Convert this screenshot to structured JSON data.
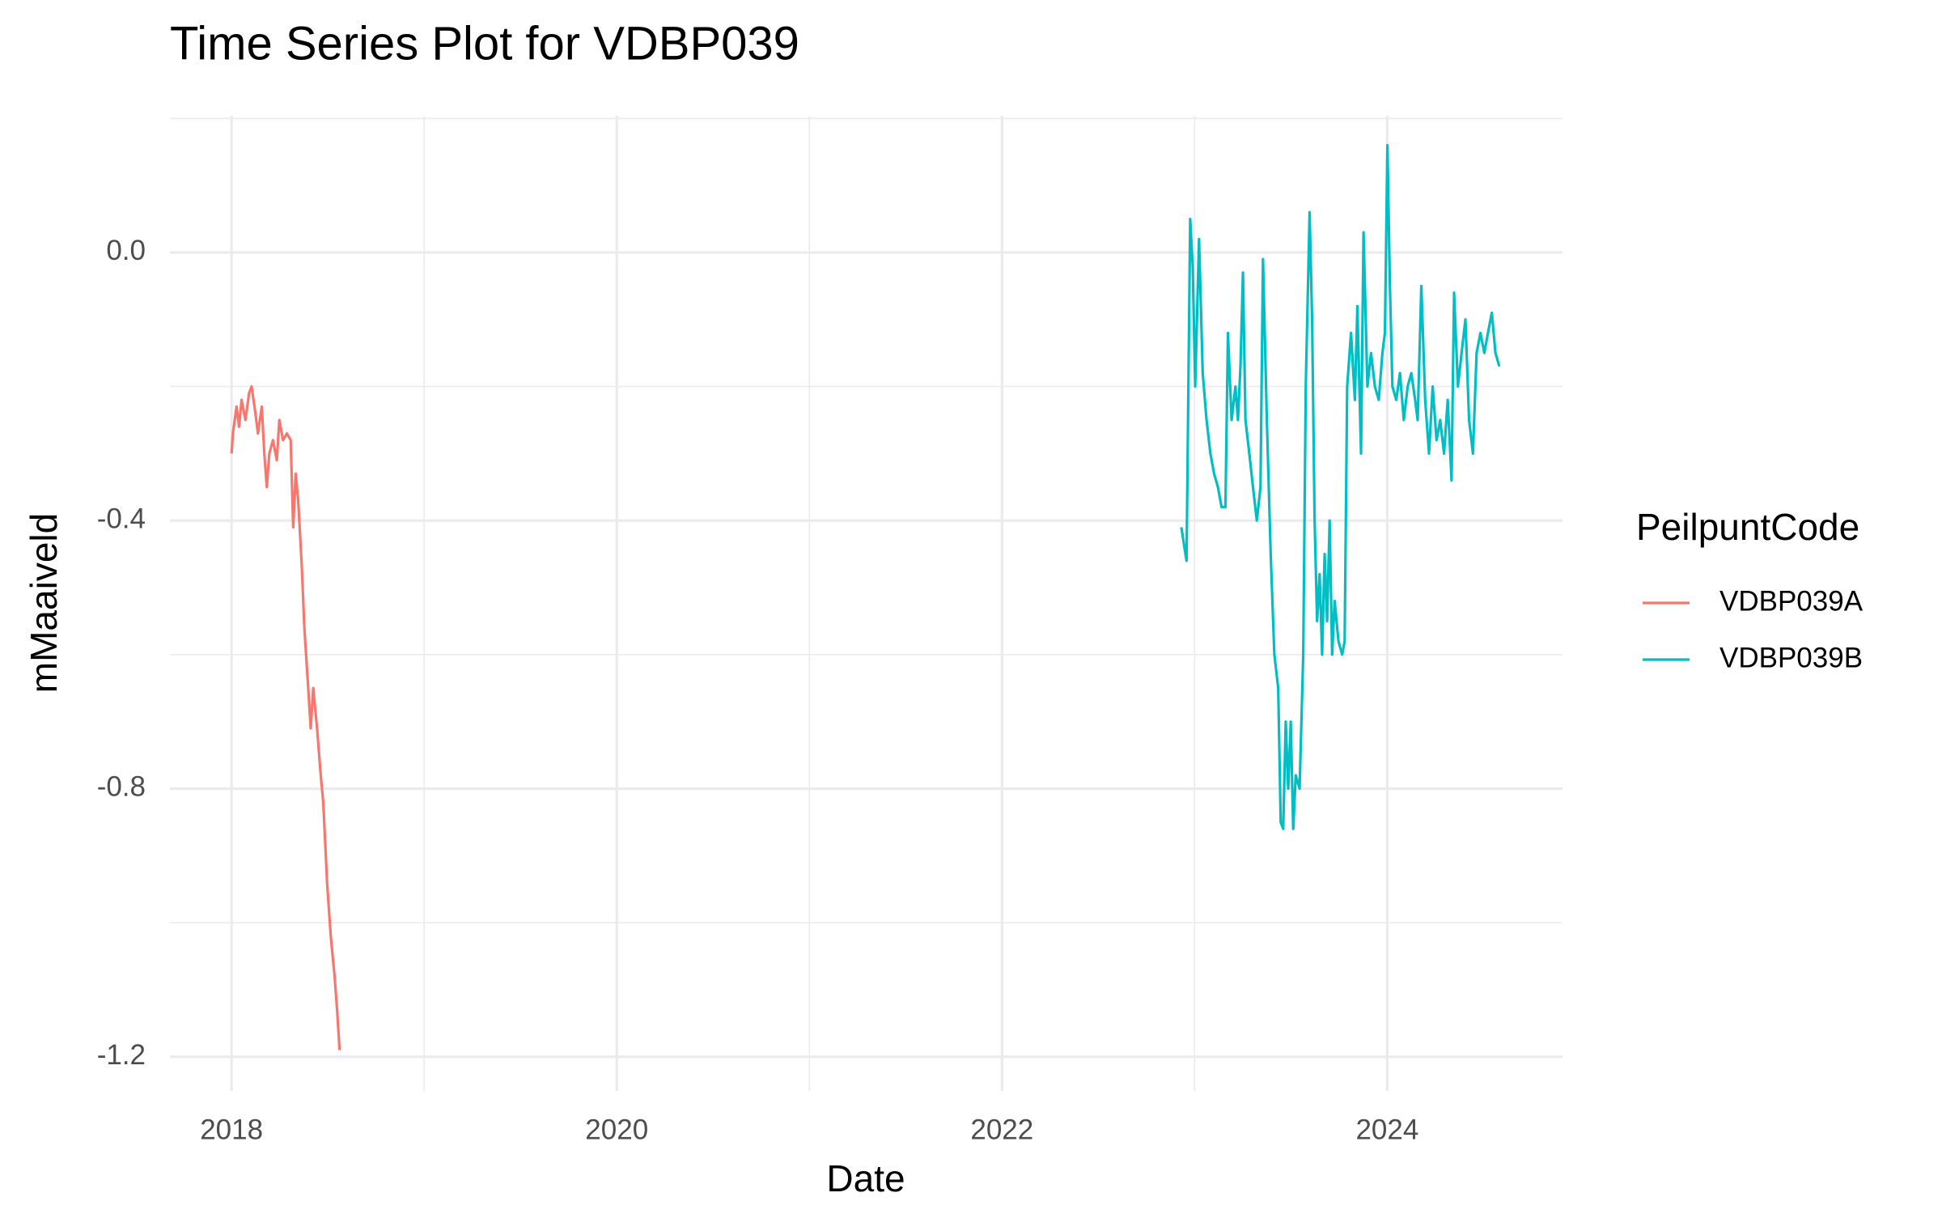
{
  "chart_data": {
    "type": "line",
    "title": "Time Series Plot for VDBP039",
    "x_label": "Date",
    "y_label": "mMaaiveld",
    "legend_title": "PeilpuntCode",
    "xlim": [
      2017.68,
      2024.91
    ],
    "ylim": [
      -1.251,
      0.204
    ],
    "xticks": [
      2018,
      2020,
      2022,
      2024
    ],
    "x_minor_ticks": [
      2019,
      2021,
      2023
    ],
    "yticks": [
      -1.2,
      -0.8,
      -0.4,
      {
        "value": 0,
        "label": "0.0"
      }
    ],
    "y_minor_ticks": [
      -1.0,
      -0.6,
      -0.2,
      0.2
    ],
    "grid": true,
    "legend": "right",
    "series": [
      {
        "name": "VDBP039A",
        "color": "#f8766d",
        "x": [
          2018.0,
          2018.007,
          2018.026,
          2018.039,
          2018.052,
          2018.072,
          2018.091,
          2018.104,
          2018.124,
          2018.137,
          2018.157,
          2018.17,
          2018.183,
          2018.196,
          2018.215,
          2018.235,
          2018.248,
          2018.267,
          2018.287,
          2018.307,
          2018.32,
          2018.333,
          2018.346,
          2018.365,
          2018.378,
          2018.398,
          2018.411,
          2018.424,
          2018.444,
          2018.463,
          2018.476,
          2018.496,
          2018.515,
          2018.535,
          2018.548,
          2018.561
        ],
        "values": [
          -0.3,
          -0.27,
          -0.23,
          -0.26,
          -0.22,
          -0.25,
          -0.21,
          -0.2,
          -0.24,
          -0.27,
          -0.23,
          -0.3,
          -0.35,
          -0.3,
          -0.28,
          -0.31,
          -0.25,
          -0.28,
          -0.27,
          -0.28,
          -0.41,
          -0.33,
          -0.37,
          -0.47,
          -0.56,
          -0.65,
          -0.71,
          -0.65,
          -0.71,
          -0.78,
          -0.82,
          -0.94,
          -1.02,
          -1.08,
          -1.13,
          -1.19
        ]
      },
      {
        "name": "VDBP039B",
        "color": "#00bfc4",
        "x": [
          2022.931,
          2022.958,
          2022.977,
          2022.99,
          2023.003,
          2023.023,
          2023.042,
          2023.062,
          2023.082,
          2023.101,
          2023.121,
          2023.14,
          2023.16,
          2023.173,
          2023.192,
          2023.212,
          2023.225,
          2023.238,
          2023.251,
          2023.264,
          2023.284,
          2023.303,
          2023.323,
          2023.342,
          2023.355,
          2023.375,
          2023.395,
          2023.414,
          2023.434,
          2023.447,
          2023.46,
          2023.473,
          2023.486,
          2023.499,
          2023.512,
          2023.525,
          2023.545,
          2023.564,
          2023.577,
          2023.597,
          2023.61,
          2023.623,
          2023.636,
          2023.649,
          2023.662,
          2023.675,
          2023.688,
          2023.701,
          2023.714,
          2023.727,
          2023.747,
          2023.766,
          2023.779,
          2023.792,
          2023.812,
          2023.832,
          2023.845,
          2023.864,
          2023.877,
          2023.897,
          2023.916,
          2023.936,
          2023.956,
          2023.975,
          2023.988,
          2024.001,
          2024.014,
          2024.027,
          2024.047,
          2024.066,
          2024.086,
          2024.106,
          2024.125,
          2024.145,
          2024.158,
          2024.177,
          2024.197,
          2024.217,
          2024.236,
          2024.256,
          2024.275,
          2024.295,
          2024.314,
          2024.334,
          2024.347,
          2024.367,
          2024.386,
          2024.406,
          2024.425,
          2024.445,
          2024.464,
          2024.484,
          2024.504,
          2024.523,
          2024.543,
          2024.562,
          2024.582
        ],
        "values": [
          -0.41,
          -0.46,
          0.05,
          -0.02,
          -0.2,
          0.02,
          -0.18,
          -0.25,
          -0.3,
          -0.33,
          -0.35,
          -0.38,
          -0.38,
          -0.12,
          -0.25,
          -0.2,
          -0.25,
          -0.17,
          -0.03,
          -0.25,
          -0.3,
          -0.35,
          -0.4,
          -0.35,
          -0.01,
          -0.25,
          -0.45,
          -0.6,
          -0.65,
          -0.85,
          -0.86,
          -0.7,
          -0.8,
          -0.7,
          -0.86,
          -0.78,
          -0.8,
          -0.6,
          -0.2,
          0.06,
          -0.1,
          -0.4,
          -0.55,
          -0.48,
          -0.6,
          -0.45,
          -0.55,
          -0.4,
          -0.6,
          -0.52,
          -0.58,
          -0.6,
          -0.58,
          -0.2,
          -0.12,
          -0.22,
          -0.08,
          -0.3,
          0.03,
          -0.2,
          -0.15,
          -0.2,
          -0.22,
          -0.15,
          -0.12,
          0.16,
          -0.05,
          -0.2,
          -0.22,
          -0.18,
          -0.25,
          -0.2,
          -0.18,
          -0.22,
          -0.25,
          -0.05,
          -0.22,
          -0.3,
          -0.2,
          -0.28,
          -0.25,
          -0.3,
          -0.22,
          -0.34,
          -0.06,
          -0.2,
          -0.15,
          -0.1,
          -0.25,
          -0.3,
          -0.15,
          -0.12,
          -0.15,
          -0.12,
          -0.09,
          -0.15,
          -0.17
        ]
      }
    ]
  }
}
